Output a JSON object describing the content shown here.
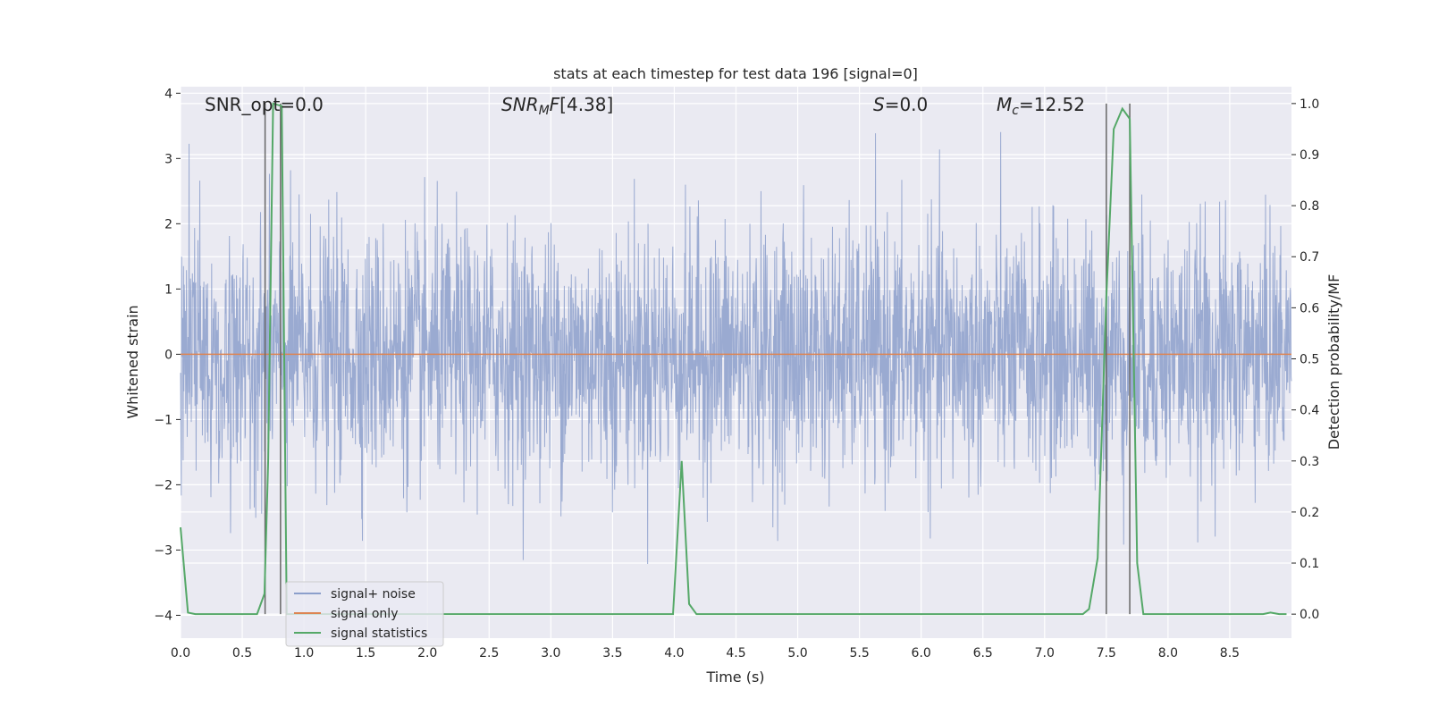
{
  "chart_data": {
    "type": "line",
    "title": "stats at each timestep for test data 196 [signal=0]",
    "xlabel": "Time (s)",
    "ylabel": "Whitened strain",
    "ylabel_right": "Detection probability/MF",
    "xlim": [
      0,
      9.0
    ],
    "ylim": [
      -4.35,
      4.1
    ],
    "ylim_right": [
      -0.047,
      1.033
    ],
    "x_ticks": [
      "0.0",
      "0.5",
      "1.0",
      "1.5",
      "2.0",
      "2.5",
      "3.0",
      "3.5",
      "4.0",
      "4.5",
      "5.0",
      "5.5",
      "6.0",
      "6.5",
      "7.0",
      "7.5",
      "8.0",
      "8.5"
    ],
    "y_ticks": [
      "4",
      "3",
      "2",
      "1",
      "0",
      "−1",
      "−2",
      "−3",
      "−4"
    ],
    "y_ticks_right": [
      "1.0",
      "0.9",
      "0.8",
      "0.7",
      "0.6",
      "0.5",
      "0.4",
      "0.3",
      "0.2",
      "0.1",
      "0.0"
    ],
    "grid": true,
    "legend_position": "lower-left",
    "annotations": {
      "snr_opt": "SNR_opt=0.0",
      "snr_mf": "[4.38]",
      "s_value": "=0.0",
      "mc_value": "=12.52"
    },
    "series": [
      {
        "name": "signal+ noise",
        "color": "#8c9fcb",
        "description_values": "whitened noise trace, amplitude mostly within ±1.5, peaks to about ±3.7",
        "y_range_bulk": [
          -1.6,
          1.45
        ],
        "y_extremes": [
          -4.0,
          3.72
        ]
      },
      {
        "name": "signal only",
        "color": "#dd8452",
        "x": [
          0,
          9.0
        ],
        "y": [
          0,
          0
        ]
      },
      {
        "name": "signal statistics",
        "color": "#55a868",
        "axis": "right",
        "x": [
          0.0,
          0.06,
          0.12,
          0.62,
          0.68,
          0.71,
          0.75,
          0.82,
          0.86,
          3.99,
          4.06,
          4.12,
          4.18,
          7.31,
          7.36,
          7.43,
          7.5,
          7.56,
          7.63,
          7.69,
          7.75,
          7.8,
          8.77,
          8.83,
          8.9,
          8.96
        ],
        "y": [
          0.17,
          0.003,
          0.0,
          0.0,
          0.04,
          0.3,
          1.0,
          0.995,
          0.0,
          0.0,
          0.3,
          0.02,
          0.0,
          0.0,
          0.01,
          0.11,
          0.62,
          0.95,
          0.99,
          0.97,
          0.1,
          0.0,
          0.0,
          0.003,
          0.0,
          0.0
        ]
      }
    ],
    "vertical_lines": [
      0.685,
      0.81,
      7.5,
      7.69
    ],
    "vertical_line_color": "#666666"
  }
}
